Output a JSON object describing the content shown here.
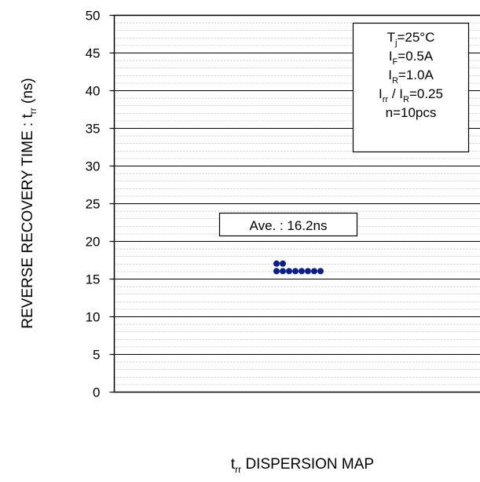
{
  "chart_data": {
    "type": "scatter",
    "ylabel": {
      "main": "REVERSE RECOVERY TIME : t",
      "sub": "rr",
      "unit": " (ns)"
    },
    "xlabel": {
      "main": "t",
      "sub": "rr",
      "rest": " DISPERSION MAP"
    },
    "ylim": [
      0,
      50
    ],
    "y_major_step": 5,
    "y_minor_step": 1,
    "y_ticks": [
      "0",
      "5",
      "10",
      "15",
      "20",
      "25",
      "30",
      "35",
      "40",
      "45",
      "50"
    ],
    "grid": true,
    "conditions_legend_position": "top-right",
    "conditions": [
      {
        "main": "T",
        "sub": "j",
        "rest": "=25°C"
      },
      {
        "main": "I",
        "sub": "F",
        "rest": "=0.5A"
      },
      {
        "main": "I",
        "sub": "R",
        "rest": "=1.0A"
      },
      {
        "main": "I",
        "sub": "rr",
        "mid": " / I",
        "sub2": "R",
        "rest": "=0.25"
      },
      {
        "main": "n=10pcs"
      }
    ],
    "average_label": "Ave. : 16.2ns",
    "points": [
      {
        "column": 1,
        "y": 17
      },
      {
        "column": 2,
        "y": 17
      },
      {
        "column": 1,
        "y": 16
      },
      {
        "column": 2,
        "y": 16
      },
      {
        "column": 3,
        "y": 16
      },
      {
        "column": 4,
        "y": 16
      },
      {
        "column": 5,
        "y": 16
      },
      {
        "column": 6,
        "y": 16
      },
      {
        "column": 7,
        "y": 16
      },
      {
        "column": 8,
        "y": 16
      }
    ],
    "colors": {
      "point": "#0a1e8c",
      "axis": "#000000",
      "major_grid": "#000000",
      "minor_grid": "#aaaaaa"
    }
  }
}
